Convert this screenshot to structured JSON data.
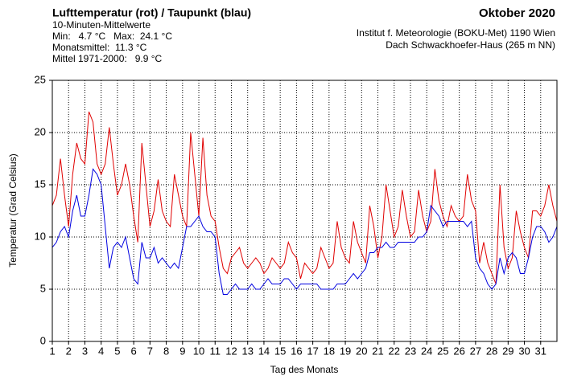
{
  "chart_data": {
    "type": "line",
    "title": "Lufttemperatur (rot) / Taupunkt (blau)",
    "subtitle": "10-Minuten-Mittelwerte",
    "stats": [
      "Min:   4.7 °C   Max:  24.1 °C",
      "Monatsmittel:  11.3 °C",
      "Mittel 1971-2000:   9.9 °C"
    ],
    "period": "Oktober 2020",
    "source": [
      "Institut f. Meteorologie (BOKU-Met) 1190 Wien",
      "Dach Schwackhoefer-Haus (265 m NN)"
    ],
    "xlabel": "Tag des Monats",
    "ylabel": "Temperatur (Grad Celsius)",
    "xlim": [
      1,
      32
    ],
    "ylim": [
      0,
      25
    ],
    "xticks": [
      1,
      2,
      3,
      4,
      5,
      6,
      7,
      8,
      9,
      10,
      11,
      12,
      13,
      14,
      15,
      16,
      17,
      18,
      19,
      20,
      21,
      22,
      23,
      24,
      25,
      26,
      27,
      28,
      29,
      30,
      31
    ],
    "yticks": [
      0,
      5,
      10,
      15,
      20,
      25
    ],
    "grid": true,
    "x": [
      1,
      1.25,
      1.5,
      1.75,
      2,
      2.25,
      2.5,
      2.75,
      3,
      3.25,
      3.5,
      3.75,
      4,
      4.25,
      4.5,
      4.75,
      5,
      5.25,
      5.5,
      5.75,
      6,
      6.25,
      6.5,
      6.75,
      7,
      7.25,
      7.5,
      7.75,
      8,
      8.25,
      8.5,
      8.75,
      9,
      9.25,
      9.5,
      9.75,
      10,
      10.25,
      10.5,
      10.75,
      11,
      11.25,
      11.5,
      11.75,
      12,
      12.25,
      12.5,
      12.75,
      13,
      13.25,
      13.5,
      13.75,
      14,
      14.25,
      14.5,
      14.75,
      15,
      15.25,
      15.5,
      15.75,
      16,
      16.25,
      16.5,
      16.75,
      17,
      17.25,
      17.5,
      17.75,
      18,
      18.25,
      18.5,
      18.75,
      19,
      19.25,
      19.5,
      19.75,
      20,
      20.25,
      20.5,
      20.75,
      21,
      21.25,
      21.5,
      21.75,
      22,
      22.25,
      22.5,
      22.75,
      23,
      23.25,
      23.5,
      23.75,
      24,
      24.25,
      24.5,
      24.75,
      25,
      25.25,
      25.5,
      25.75,
      26,
      26.25,
      26.5,
      26.75,
      27,
      27.25,
      27.5,
      27.75,
      28,
      28.25,
      28.5,
      28.75,
      29,
      29.25,
      29.5,
      29.75,
      30,
      30.25,
      30.5,
      30.75,
      31,
      31.25,
      31.5,
      31.75,
      32
    ],
    "series": [
      {
        "name": "Lufttemperatur",
        "color": "#e00000",
        "values": [
          13,
          14,
          17.5,
          14,
          11,
          16,
          19,
          17.5,
          17,
          22,
          21,
          17,
          16,
          17,
          20.5,
          17,
          14,
          15,
          17,
          15,
          12,
          9.5,
          19,
          15,
          11,
          12.5,
          15.5,
          12.5,
          11.5,
          11,
          16,
          14,
          12,
          11,
          20,
          16,
          12,
          19.5,
          14,
          12,
          11.5,
          9,
          7,
          6.5,
          8,
          8.5,
          9,
          7.5,
          7,
          7.5,
          8,
          7.5,
          6.5,
          7,
          8,
          7.5,
          7,
          7.5,
          9.5,
          8.5,
          8,
          6,
          7.5,
          7,
          6.5,
          7,
          9,
          8,
          7,
          7.5,
          11.5,
          9,
          8,
          7.5,
          11.5,
          9.5,
          8.5,
          7.5,
          13,
          11,
          8,
          10,
          15,
          12.5,
          10,
          11,
          14.5,
          12,
          10,
          10.5,
          14.5,
          12,
          10.5,
          11.5,
          16.5,
          13.5,
          12,
          11,
          13,
          12,
          11.5,
          12,
          16,
          13.5,
          12.5,
          7.5,
          9.5,
          7.5,
          6.5,
          5.5,
          15,
          9,
          7,
          8,
          12.5,
          10.5,
          9,
          8,
          12.5,
          12.5,
          12,
          13,
          15,
          13,
          11.5
        ]
      },
      {
        "name": "Taupunkt",
        "color": "#0000e0",
        "values": [
          9,
          9.5,
          10.5,
          11,
          10,
          12.5,
          14,
          12,
          12,
          14,
          16.5,
          16,
          15,
          11,
          7,
          9,
          9.5,
          9,
          10,
          8,
          6,
          5.5,
          9.5,
          8,
          8,
          9,
          7.5,
          8,
          7.5,
          7,
          7.5,
          7,
          9,
          11,
          11,
          11.5,
          12,
          11,
          10.5,
          10.5,
          10,
          6.5,
          4.5,
          4.5,
          5,
          5.5,
          5,
          5,
          5,
          5.5,
          5,
          5,
          5.5,
          6,
          5.5,
          5.5,
          5.5,
          6,
          6,
          5.5,
          5,
          5.5,
          5.5,
          5.5,
          5.5,
          5.5,
          5,
          5,
          5,
          5,
          5.5,
          5.5,
          5.5,
          6,
          6.5,
          6,
          6.5,
          7,
          8.5,
          8.5,
          9,
          9,
          9.5,
          9,
          9,
          9.5,
          9.5,
          9.5,
          9.5,
          9.5,
          10,
          10,
          10.5,
          13,
          12.5,
          12,
          11,
          11.5,
          11.5,
          11.5,
          11.5,
          11.5,
          11,
          11.5,
          8,
          7,
          6.5,
          5.5,
          5,
          5.5,
          8,
          6.5,
          8,
          8.5,
          8,
          6.5,
          6.5,
          8,
          10,
          11,
          11,
          10.5,
          9.5,
          10,
          11
        ]
      }
    ]
  }
}
